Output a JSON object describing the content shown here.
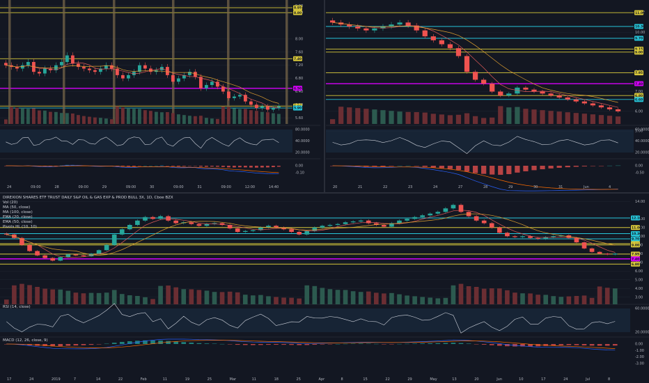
{
  "colors": {
    "bg": "#131722",
    "grid": "#1f2430",
    "separator": "#2a2e39",
    "up": "#26a69a",
    "down": "#ef5350",
    "up_vol": "#2c5a4f",
    "down_vol": "#6b2e33",
    "yellow_line": "#d8c83a",
    "teal_line": "#26c6da",
    "magenta_line": "#d500f9",
    "ma_red": "#e05a5a",
    "ma_orange": "#e0a030",
    "rsi_line": "#cfd3dc",
    "macd_line": "#2962ff",
    "signal_line": "#ff6d00",
    "vol_band": "#7a6a4a",
    "rsi_band": "#1b2f45"
  },
  "legend": {
    "title": "DIREXION SHARES ETF TRUST DAILY S&P OIL & GAS EXP & PROD BULL 3X, 1D, Cboe BZX",
    "items": [
      "Vol (20)",
      "MA (50, close)",
      "MA (100, close)",
      "EMA (20, close)",
      "EMA (50, close)",
      "Pivots HL (10, 10)"
    ]
  },
  "indicators": {
    "rsi_label": "RSI (14, close)",
    "macd_label": "MACD (12, 26, close, 9)"
  },
  "chart_data": [
    {
      "id": "intraday",
      "type": "candlestick",
      "price_ticks": [
        "9.00",
        "8.80",
        "8.00",
        "7.60",
        "7.20",
        "6.80",
        "6.40",
        "6.00",
        "5.60"
      ],
      "price_range": [
        5.5,
        9.1
      ],
      "x_labels": [
        "24",
        "09:00",
        "28",
        "09:00",
        "29",
        "09:00",
        "30",
        "09:00",
        "31",
        "09:00",
        "12:00",
        "14:40"
      ],
      "closes": [
        7.2,
        7.15,
        7.1,
        7.2,
        7.3,
        7.0,
        6.95,
        7.1,
        7.05,
        7.2,
        7.3,
        7.5,
        7.25,
        7.15,
        7.1,
        7.05,
        7.0,
        7.1,
        7.2,
        7.1,
        6.9,
        6.8,
        6.9,
        7.0,
        7.2,
        7.1,
        7.0,
        7.05,
        7.15,
        6.9,
        6.7,
        6.8,
        6.9,
        7.0,
        6.85,
        6.5,
        6.6,
        6.7,
        6.55,
        6.4,
        6.2,
        6.25,
        6.3,
        6.1,
        6.0,
        5.9,
        5.95,
        5.85,
        5.9,
        5.95
      ],
      "levels": [
        {
          "value": 8.95,
          "kind": "yellow",
          "label": "8.95"
        },
        {
          "value": 8.8,
          "kind": "yellow",
          "label": "8.80"
        },
        {
          "value": 7.4,
          "kind": "yellow",
          "label": "7.40"
        },
        {
          "value": 6.5,
          "kind": "magenta",
          "label": "6.50"
        },
        {
          "value": 5.96,
          "kind": "yellow",
          "label": "5.96"
        },
        {
          "value": 5.9,
          "kind": "teal",
          "label": "5.90"
        }
      ],
      "rsi_ticks": [
        "80.0000",
        "40.0000",
        "20.0000"
      ],
      "macd_ticks": [
        "0.00",
        "-0.10"
      ]
    },
    {
      "id": "4h",
      "type": "candlestick",
      "price_ticks": [
        "11.00",
        "10.00",
        "9.00",
        "8.00",
        "7.00",
        "6.00",
        "5.00"
      ],
      "price_range": [
        5.5,
        11.5
      ],
      "x_labels": [
        "20",
        "21",
        "22",
        "23",
        "24",
        "27",
        "28",
        "29",
        "30",
        "31",
        "Jun",
        "4"
      ],
      "closes": [
        10.5,
        10.4,
        10.3,
        10.2,
        10.1,
        10.2,
        10.3,
        10.4,
        10.5,
        10.35,
        10.1,
        9.8,
        9.6,
        9.4,
        9.2,
        8.8,
        8.0,
        7.6,
        7.4,
        7.0,
        6.8,
        6.9,
        7.2,
        7.1,
        7.0,
        6.9,
        6.8,
        6.7,
        6.6,
        6.5,
        6.4,
        6.3,
        6.2,
        6.1,
        6.0
      ],
      "levels": [
        {
          "value": 11.0,
          "kind": "yellow",
          "label": "11.00"
        },
        {
          "value": 10.3,
          "kind": "teal",
          "label": "10.30"
        },
        {
          "value": 9.7,
          "kind": "teal",
          "label": "9.70"
        },
        {
          "value": 9.15,
          "kind": "yellow",
          "label": "9.15"
        },
        {
          "value": 9.0,
          "kind": "yellow",
          "label": "9.00"
        },
        {
          "value": 7.95,
          "kind": "yellow",
          "label": "7.95"
        },
        {
          "value": 7.4,
          "kind": "magenta",
          "label": "7.40"
        },
        {
          "value": 6.8,
          "kind": "yellow",
          "label": "6.80"
        },
        {
          "value": 6.6,
          "kind": "teal",
          "label": "6.60"
        }
      ],
      "rsi_ticks": [
        "60.0000",
        "40.0000",
        "20.0000"
      ],
      "macd_ticks": [
        "0.00",
        "-0.50"
      ]
    },
    {
      "id": "daily",
      "type": "candlestick",
      "price_ticks": [
        "14.00",
        "12.00",
        "11.00",
        "10.00",
        "9.00",
        "8.00",
        "7.00",
        "6.00",
        "5.00",
        "4.00",
        "3.00"
      ],
      "price_range": [
        2.5,
        14.5
      ],
      "x_labels": [
        "17",
        "24",
        "2019",
        "7",
        "14",
        "22",
        "Feb",
        "11",
        "19",
        "25",
        "Mar",
        "11",
        "18",
        "25",
        "Apr",
        "8",
        "15",
        "22",
        "29",
        "May",
        "13",
        "20",
        "Jun",
        "10",
        "17",
        "24",
        "Jul",
        "8"
      ],
      "closes": [
        10.2,
        9.8,
        9.0,
        8.3,
        7.8,
        7.5,
        7.2,
        7.6,
        7.9,
        7.8,
        7.7,
        8.0,
        8.4,
        9.0,
        10.2,
        10.8,
        11.3,
        11.8,
        12.2,
        12.0,
        12.3,
        11.8,
        11.5,
        11.6,
        11.4,
        11.2,
        11.4,
        11.5,
        11.3,
        10.9,
        10.5,
        10.6,
        10.7,
        11.0,
        11.2,
        11.0,
        10.8,
        10.5,
        10.2,
        10.6,
        11.0,
        11.2,
        11.3,
        11.4,
        11.6,
        11.7,
        11.8,
        11.5,
        11.3,
        11.1,
        11.5,
        11.8,
        12.0,
        12.2,
        12.4,
        12.6,
        12.8,
        13.2,
        13.6,
        12.8,
        12.3,
        11.8,
        11.5,
        11.0,
        10.4,
        10.0,
        9.9,
        10.0,
        9.8,
        9.7,
        9.9,
        10.0,
        10.1,
        9.8,
        9.3,
        8.6,
        8.2,
        8.0,
        7.9,
        8.0
      ],
      "levels": [
        {
          "value": 12.1,
          "kind": "teal",
          "label": "12.10"
        },
        {
          "value": 11.0,
          "kind": "yellow",
          "label": "11.00"
        },
        {
          "value": 10.3,
          "kind": "teal",
          "label": "10.30"
        },
        {
          "value": 9.7,
          "kind": "teal",
          "label": "9.70"
        },
        {
          "value": 9.15,
          "kind": "yellow",
          "label": "9.15"
        },
        {
          "value": 9.0,
          "kind": "yellow",
          "label": "9.00"
        },
        {
          "value": 7.95,
          "kind": "yellow",
          "label": "7.95"
        },
        {
          "value": 7.4,
          "kind": "magenta",
          "label": "7.40"
        },
        {
          "value": 6.8,
          "kind": "yellow",
          "label": "6.80"
        }
      ],
      "rsi_ticks": [
        "60.0000",
        "20.0000"
      ],
      "macd_ticks": [
        "0.00",
        "-1.00",
        "-2.00",
        "-3.00"
      ]
    }
  ]
}
